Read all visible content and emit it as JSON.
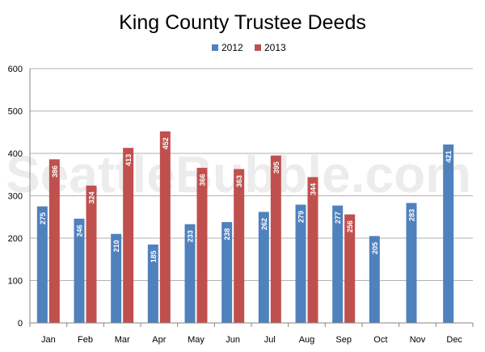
{
  "chart_data": {
    "type": "bar",
    "title": "King County Trustee Deeds",
    "categories": [
      "Jan",
      "Feb",
      "Mar",
      "Apr",
      "May",
      "Jun",
      "Jul",
      "Aug",
      "Sep",
      "Oct",
      "Nov",
      "Dec"
    ],
    "series": [
      {
        "name": "2012",
        "color": "#4f81bd",
        "values": [
          275,
          246,
          210,
          185,
          233,
          238,
          262,
          279,
          277,
          205,
          283,
          421
        ]
      },
      {
        "name": "2013",
        "color": "#c0504d",
        "values": [
          386,
          324,
          413,
          452,
          366,
          363,
          395,
          344,
          256,
          null,
          null,
          null
        ]
      }
    ],
    "ylim": [
      0,
      600
    ],
    "yticks": [
      0,
      100,
      200,
      300,
      400,
      500,
      600
    ],
    "grid": true,
    "legend": "top-center",
    "watermark": "SeattleBubble.com"
  }
}
